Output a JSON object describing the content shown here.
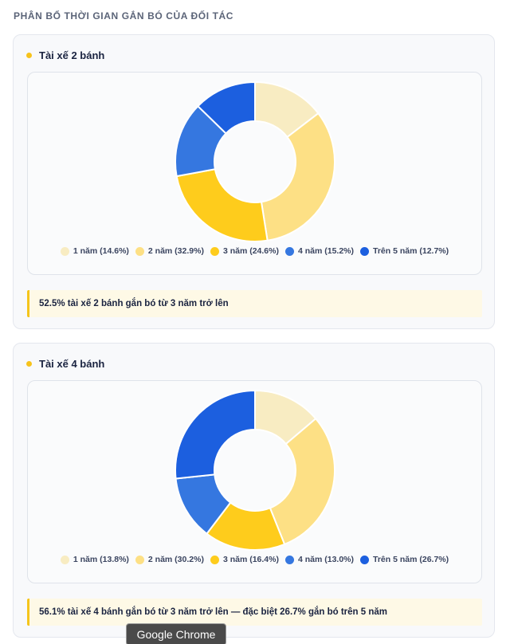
{
  "section_title": "PHÂN BỔ THỜI GIAN GẮN BÓ CỦA ĐỐI TÁC",
  "colors": {
    "slice_1": "#f8ecc2",
    "slice_2": "#fde085",
    "slice_3": "#fecc1c",
    "slice_4": "#3577e0",
    "slice_5": "#1c5fdf",
    "accent": "#f7c31b"
  },
  "chart_data": [
    {
      "type": "pie",
      "title": "Tài xế 2 bánh",
      "categories": [
        "1 năm",
        "2 năm",
        "3 năm",
        "4 năm",
        "Trên 5 năm"
      ],
      "values": [
        14.6,
        32.9,
        24.6,
        15.2,
        12.7
      ],
      "legend": [
        "1 năm (14.6%)",
        "2 năm (32.9%)",
        "3 năm (24.6%)",
        "4 năm (15.2%)",
        "Trên 5 năm (12.7%)"
      ],
      "legend_position": "bottom",
      "note": "52.5% tài xế 2 bánh gắn bó từ 3 năm trở lên"
    },
    {
      "type": "pie",
      "title": "Tài xế 4 bánh",
      "categories": [
        "1 năm",
        "2 năm",
        "3 năm",
        "4 năm",
        "Trên 5 năm"
      ],
      "values": [
        13.8,
        30.2,
        16.4,
        13.0,
        26.7
      ],
      "legend": [
        "1 năm (13.8%)",
        "2 năm (30.2%)",
        "3 năm (16.4%)",
        "4 năm (13.0%)",
        "Trên 5 năm (26.7%)"
      ],
      "legend_position": "bottom",
      "note": "56.1% tài xế 4 bánh gắn bó từ 3 năm trở lên — đặc biệt 26.7% gắn bó trên 5 năm"
    }
  ],
  "tooltip": "Google Chrome"
}
